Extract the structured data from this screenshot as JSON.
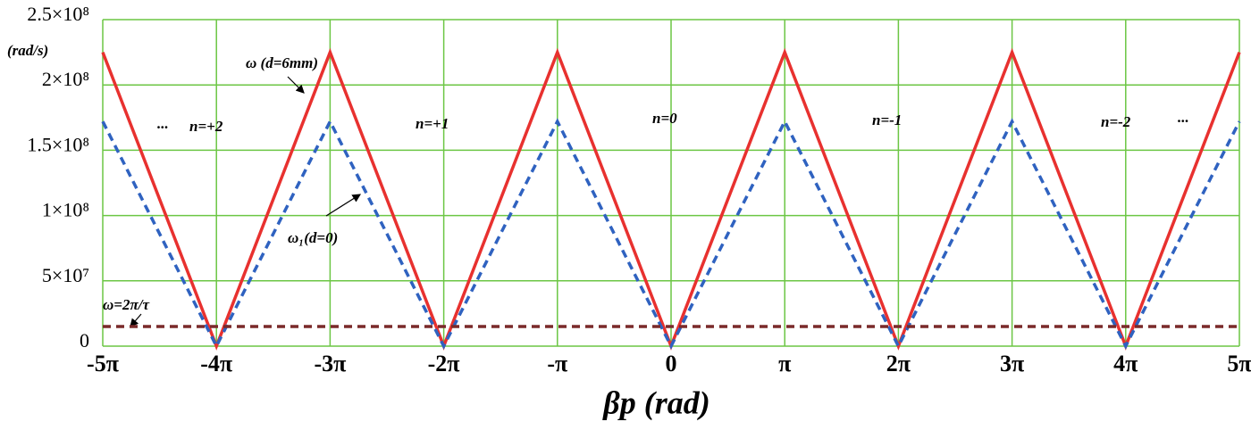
{
  "chart_data": {
    "type": "line",
    "x_label": "βp (rad)",
    "y_label": "(rad/s)",
    "x": [
      -15.708,
      -12.566,
      -9.425,
      -6.283,
      -3.142,
      0,
      3.142,
      6.283,
      9.425,
      12.566,
      15.708
    ],
    "series": [
      {
        "name": "ω (d=6mm)",
        "color": "#e8312f",
        "dash": false,
        "values": [
          225000000,
          0,
          225000000,
          0,
          225000000,
          0,
          225000000,
          0,
          225000000,
          0,
          225000000
        ]
      },
      {
        "name": "ω₁(d=0)",
        "color": "#2f62c0",
        "dash": true,
        "values": [
          172000000,
          0,
          172000000,
          0,
          172000000,
          0,
          172000000,
          0,
          172000000,
          0,
          172000000
        ]
      },
      {
        "name": "ω=2π/τ",
        "color": "#7a2a2a",
        "dash": true,
        "values": [
          15000000,
          15000000,
          15000000,
          15000000,
          15000000,
          15000000,
          15000000,
          15000000,
          15000000,
          15000000,
          15000000
        ]
      }
    ],
    "annotations": [
      "...",
      "n=+2",
      "n=+1",
      "n=0",
      "n=-1",
      "n=-2",
      "..."
    ],
    "xlim": [
      -15.708,
      15.708
    ],
    "xticks": [
      {
        "value": -15.708,
        "label": "-5π"
      },
      {
        "value": -12.566,
        "label": "-4π"
      },
      {
        "value": -9.425,
        "label": "-3π"
      },
      {
        "value": -6.283,
        "label": "-2π"
      },
      {
        "value": -3.142,
        "label": "-π"
      },
      0,
      {
        "value": 3.142,
        "label": "π"
      },
      {
        "value": 6.283,
        "label": "2π"
      },
      {
        "value": 9.425,
        "label": "3π"
      },
      {
        "value": 12.566,
        "label": "4π"
      },
      {
        "value": 15.708,
        "label": "5π"
      }
    ],
    "ylim": [
      0,
      250000000
    ],
    "yticks": [
      0,
      {
        "value": 50000000,
        "label": "5×10⁷"
      },
      {
        "value": 100000000,
        "label": "1×10⁸"
      },
      {
        "value": 150000000,
        "label": "1.5×10⁸"
      },
      {
        "value": 200000000,
        "label": "2×10⁸"
      },
      {
        "value": 250000000,
        "label": "2.5×10⁸"
      }
    ],
    "grid": true,
    "grid_color": "#6cc644"
  }
}
